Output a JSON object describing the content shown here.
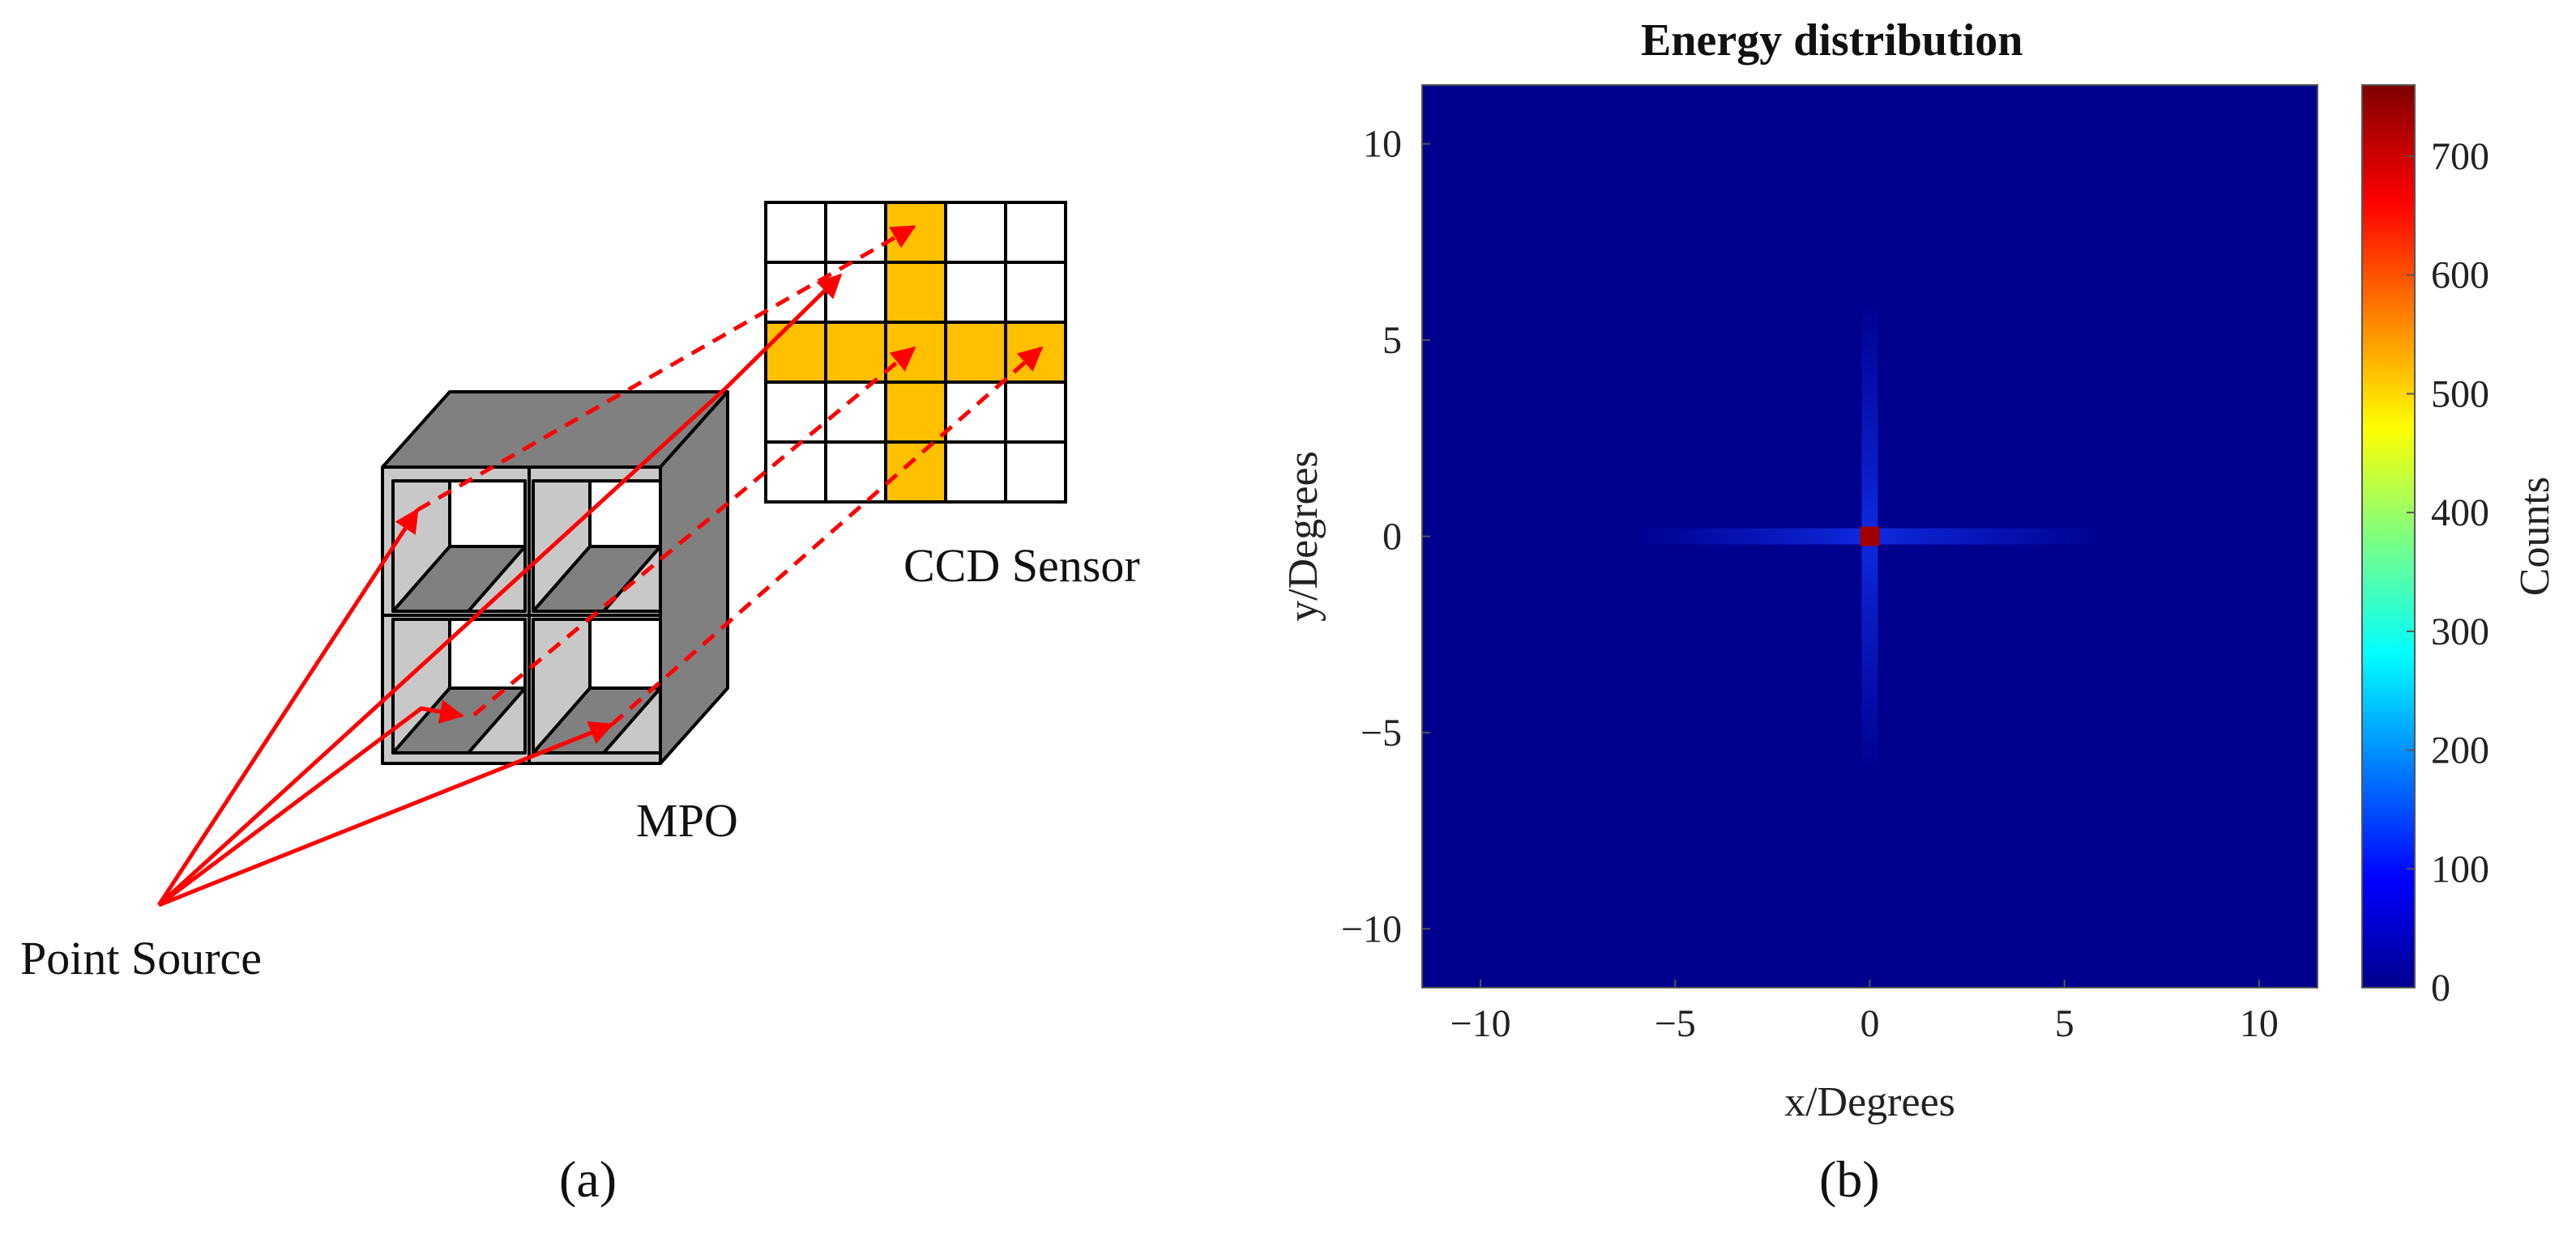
{
  "panel_a": {
    "label_letter": "a",
    "mpo_label": "MPO",
    "ccd_label": "CCD Sensor",
    "source_label": "Point Source",
    "colors": {
      "mpo_front": "#c8c8c8",
      "mpo_dark": "#808080",
      "ccd_highlight": "#ffc000",
      "rays": "#ff0000"
    }
  },
  "panel_b": {
    "label_letter": "b",
    "title": "Energy distribution",
    "colorbar_label": "Counts"
  },
  "chart_data": {
    "type": "heatmap",
    "title": "Energy distribution",
    "xlabel": "x/Degrees",
    "ylabel": "y/Degrees",
    "xlim": [
      -11.5,
      11.5
    ],
    "ylim": [
      -11.5,
      11.5
    ],
    "xticks": [
      -10,
      -5,
      0,
      5,
      10
    ],
    "yticks": [
      -10,
      -5,
      0,
      5,
      10
    ],
    "colorbar": {
      "label": "Counts",
      "range": [
        0,
        760
      ],
      "ticks": [
        0,
        100,
        200,
        300,
        400,
        500,
        600,
        700
      ]
    },
    "background_value": 0,
    "peak": {
      "x": 0,
      "y": 0,
      "value": 750
    },
    "cross_arms": [
      {
        "direction": "horizontal",
        "y": 0,
        "x_range": [
          -6,
          6
        ],
        "value": 40
      },
      {
        "direction": "vertical",
        "x": 0,
        "y_range": [
          -6,
          6
        ],
        "value": 40
      }
    ]
  }
}
